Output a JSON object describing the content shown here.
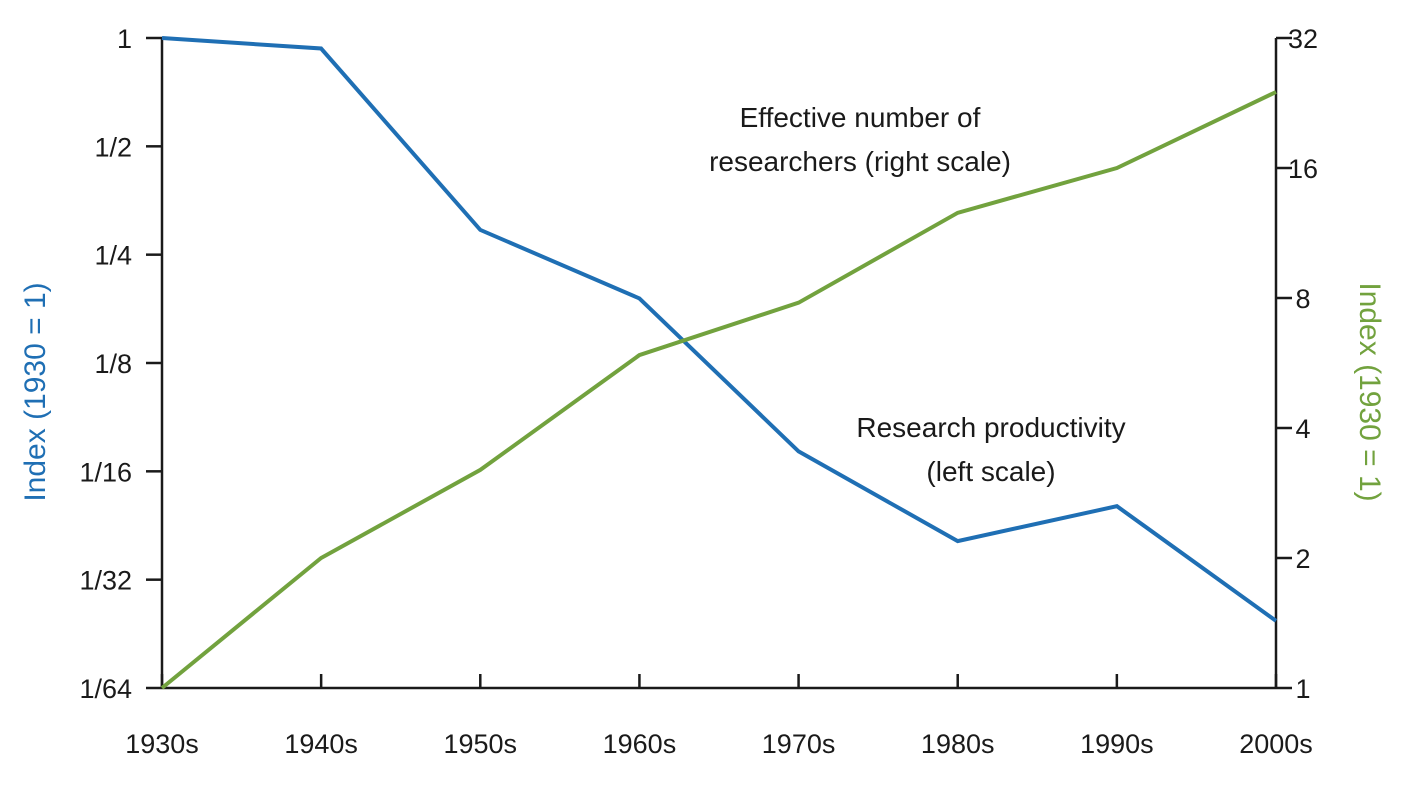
{
  "chart_data": {
    "type": "line",
    "x": [
      "1930s",
      "1940s",
      "1950s",
      "1960s",
      "1970s",
      "1980s",
      "1990s",
      "2000s"
    ],
    "left_axis": {
      "label": "Index (1930 = 1)",
      "scale": "log2",
      "range": [
        0.015625,
        1
      ],
      "ticks": [
        1,
        0.5,
        0.25,
        0.125,
        0.0625,
        0.03125,
        0.015625
      ],
      "tick_labels": [
        "1",
        "1/2",
        "1/4",
        "1/8",
        "1/16",
        "1/32",
        "1/64"
      ],
      "color": "#1f6fb4"
    },
    "right_axis": {
      "label": "Index (1930 = 1)",
      "scale": "log2",
      "range": [
        1,
        32
      ],
      "ticks": [
        32,
        16,
        8,
        4,
        2,
        1
      ],
      "tick_labels": [
        "32",
        "16",
        "8",
        "4",
        "2",
        "1"
      ],
      "color": "#72a23e"
    },
    "series": [
      {
        "name": "Research productivity (left scale)",
        "axis": "left",
        "color": "#1f6fb4",
        "values": [
          1.0,
          0.935,
          0.293,
          0.189,
          0.071,
          0.04,
          0.05,
          0.024
        ]
      },
      {
        "name": "Effective number of researchers (right scale)",
        "axis": "right",
        "color": "#72a23e",
        "values": [
          1.0,
          2.0,
          3.2,
          5.9,
          7.8,
          12.6,
          16.0,
          24.0
        ]
      }
    ],
    "annotations": [
      {
        "lines": [
          "Effective number of",
          "researchers (right scale)"
        ]
      },
      {
        "lines": [
          "Research productivity",
          "(left scale)"
        ]
      }
    ],
    "grid": false,
    "legend": "none (inline labels)"
  }
}
